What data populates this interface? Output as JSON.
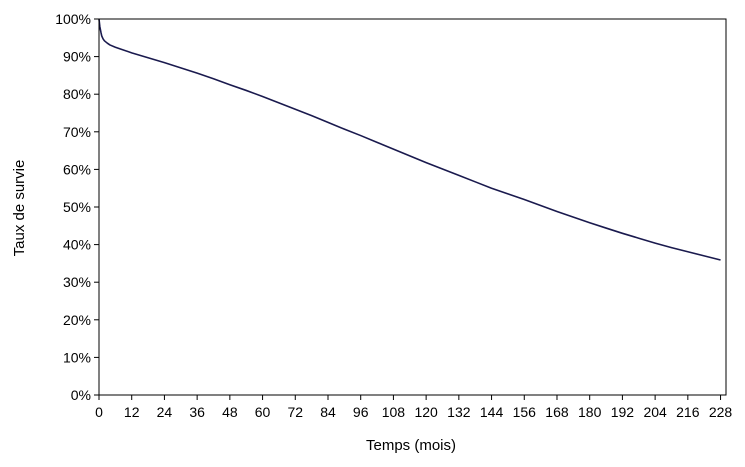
{
  "chart_data": {
    "type": "line",
    "title": "",
    "xlabel": "Temps (mois)",
    "ylabel": "Taux de survie",
    "xlim": [
      0,
      230
    ],
    "ylim": [
      0,
      100
    ],
    "x_ticks": [
      0,
      12,
      24,
      36,
      48,
      60,
      72,
      84,
      96,
      108,
      120,
      132,
      144,
      156,
      168,
      180,
      192,
      204,
      216,
      228
    ],
    "x_tick_labels": [
      "0",
      "12",
      "24",
      "36",
      "48",
      "60",
      "72",
      "84",
      "96",
      "108",
      "120",
      "132",
      "144",
      "156",
      "168",
      "180",
      "192",
      "204",
      "216",
      "228"
    ],
    "y_ticks": [
      0,
      10,
      20,
      30,
      40,
      50,
      60,
      70,
      80,
      90,
      100
    ],
    "y_tick_labels": [
      "0%",
      "10%",
      "20%",
      "30%",
      "40%",
      "50%",
      "60%",
      "70%",
      "80%",
      "90%",
      "100%"
    ],
    "grid": false,
    "line_color": "#1a1a4e",
    "series": [
      {
        "x": [
          0,
          0.3,
          0.7,
          1,
          1.5,
          2,
          3,
          4,
          6,
          8,
          12,
          18,
          24,
          30,
          36,
          42,
          48,
          54,
          60,
          66,
          72,
          78,
          84,
          90,
          96,
          102,
          108,
          114,
          120,
          126,
          132,
          138,
          144,
          150,
          156,
          162,
          168,
          174,
          180,
          186,
          192,
          198,
          204,
          210,
          216,
          222,
          228
        ],
        "y": [
          100,
          98,
          96.5,
          95.5,
          94.7,
          94.2,
          93.6,
          93.1,
          92.5,
          92,
          91,
          89.7,
          88.4,
          87,
          85.6,
          84.1,
          82.5,
          81,
          79.4,
          77.7,
          76,
          74.3,
          72.5,
          70.7,
          69,
          67.2,
          65.4,
          63.6,
          61.8,
          60.1,
          58.4,
          56.7,
          55,
          53.5,
          52,
          50.4,
          48.8,
          47.3,
          45.8,
          44.4,
          43,
          41.7,
          40.4,
          39.2,
          38.1,
          37,
          35.9
        ]
      }
    ]
  }
}
